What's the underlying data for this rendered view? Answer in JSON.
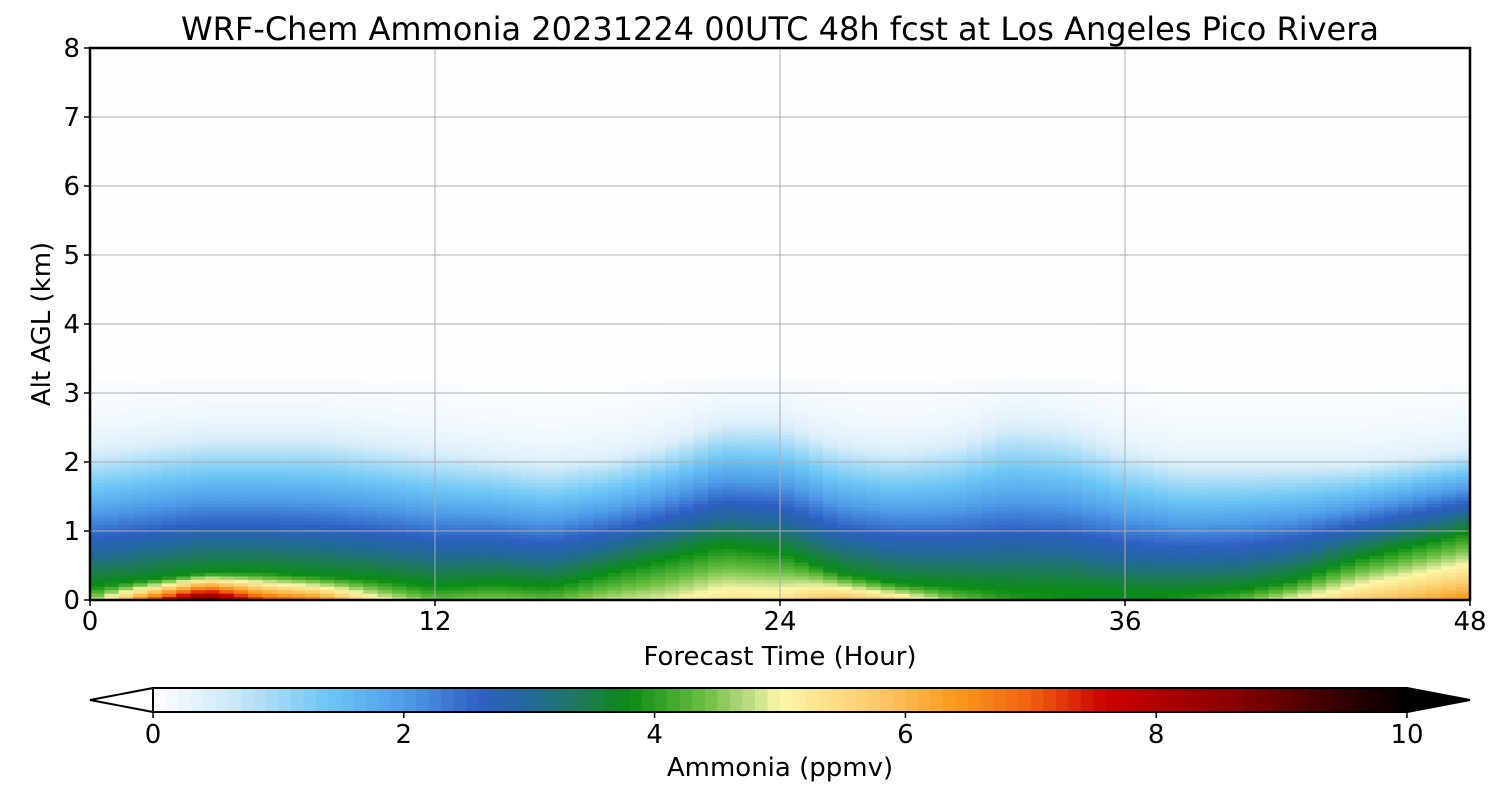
{
  "chart_data": {
    "type": "heatmap",
    "title": "WRF-Chem Ammonia  20231224 00UTC 48h fcst at Los Angeles Pico Rivera",
    "xlabel": "Forecast Time (Hour)",
    "ylabel": "Alt AGL (km)",
    "xlim": [
      0,
      48
    ],
    "ylim": [
      0,
      8
    ],
    "x_ticks": [
      "0",
      "12",
      "24",
      "36",
      "48"
    ],
    "y_ticks": [
      "0",
      "1",
      "2",
      "3",
      "4",
      "5",
      "6",
      "7",
      "8"
    ],
    "grid": true,
    "x_hours": [
      0,
      2,
      4,
      6,
      8,
      10,
      12,
      14,
      16,
      18,
      20,
      22,
      24,
      26,
      28,
      30,
      32,
      34,
      36,
      38,
      40,
      42,
      44,
      46,
      48
    ],
    "alt_km": [
      0,
      0.1,
      0.25,
      0.4,
      0.6,
      0.8,
      1.0,
      1.25,
      1.5,
      1.75,
      2.0,
      2.25,
      2.5,
      2.75,
      3.0,
      4.0,
      6.0,
      8.0
    ],
    "surface_ppmv": [
      4.5,
      7.2,
      9.6,
      7.4,
      6.8,
      5.2,
      4.4,
      4.6,
      4.4,
      4.8,
      5.0,
      5.4,
      5.4,
      6.2,
      5.8,
      4.6,
      4.0,
      3.8,
      3.5,
      4.0,
      4.4,
      5.2,
      5.8,
      6.2,
      6.6
    ],
    "mixing_height_km": [
      0.2,
      0.3,
      0.4,
      0.4,
      0.35,
      0.3,
      0.2,
      0.25,
      0.2,
      0.4,
      0.6,
      0.8,
      0.7,
      0.4,
      0.25,
      0.2,
      0.15,
      0.15,
      0.1,
      0.1,
      0.15,
      0.3,
      0.6,
      0.8,
      1.0
    ],
    "blue_top_km": [
      2.2,
      2.3,
      2.4,
      2.4,
      2.4,
      2.3,
      2.2,
      2.1,
      2.0,
      2.1,
      2.3,
      2.6,
      2.6,
      2.3,
      2.2,
      2.3,
      2.6,
      2.5,
      2.2,
      2.0,
      2.0,
      2.0,
      2.0,
      2.1,
      2.2
    ],
    "colorbar": {
      "label": "Ammonia  (ppmv)",
      "min": 0,
      "max": 10,
      "ticks": [
        "0",
        "2",
        "4",
        "6",
        "8",
        "10"
      ],
      "extend": "both",
      "stops": [
        {
          "v": 0.0,
          "c": "#ffffff"
        },
        {
          "v": 0.6,
          "c": "#cfeaf8"
        },
        {
          "v": 1.4,
          "c": "#6cc6f5"
        },
        {
          "v": 2.0,
          "c": "#4f9de8"
        },
        {
          "v": 2.6,
          "c": "#2e60c3"
        },
        {
          "v": 3.0,
          "c": "#21689a"
        },
        {
          "v": 3.4,
          "c": "#1e7a5a"
        },
        {
          "v": 3.8,
          "c": "#0a8c14"
        },
        {
          "v": 4.4,
          "c": "#6cbf40"
        },
        {
          "v": 4.8,
          "c": "#c8e08a"
        },
        {
          "v": 5.0,
          "c": "#fdf7a8"
        },
        {
          "v": 5.8,
          "c": "#fbc866"
        },
        {
          "v": 6.4,
          "c": "#f99a1c"
        },
        {
          "v": 7.0,
          "c": "#f06010"
        },
        {
          "v": 7.6,
          "c": "#cc0000"
        },
        {
          "v": 8.6,
          "c": "#8a0000"
        },
        {
          "v": 10.0,
          "c": "#000000"
        }
      ]
    }
  }
}
